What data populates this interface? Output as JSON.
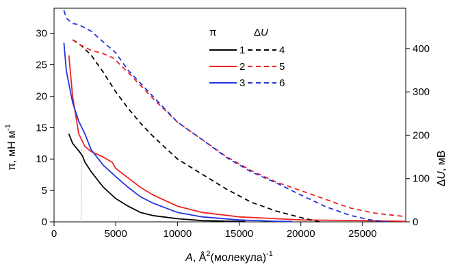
{
  "chart_data": {
    "type": "line",
    "xlabel_main": "A",
    "xlabel_rest": ", Å",
    "xlabel_sup": "2",
    "xlabel_tail": "(молекула)",
    "xlabel_sup2": "-1",
    "ylabel_left": "π, мН м",
    "ylabel_left_sup": "-1",
    "ylabel_right_prefix": "Δ",
    "ylabel_right_var": "U",
    "ylabel_right_rest": ", мВ",
    "x_ticks": [
      0,
      5000,
      10000,
      15000,
      20000,
      25000
    ],
    "y_left_ticks": [
      0,
      5,
      10,
      15,
      20,
      25,
      30
    ],
    "y_right_ticks": [
      0,
      100,
      200,
      300,
      400
    ],
    "xlim": [
      0,
      28500
    ],
    "ylim_left": [
      0,
      34
    ],
    "ylim_right": [
      0,
      493
    ],
    "legend": {
      "header_pi": "π",
      "header_du_prefix": "Δ",
      "header_du_var": "U",
      "rows": [
        {
          "pi_label": "1",
          "du_label": "4",
          "color": "#000000"
        },
        {
          "pi_label": "2",
          "du_label": "5",
          "color": "#ee2222"
        },
        {
          "pi_label": "3",
          "du_label": "6",
          "color": "#2233dd"
        }
      ]
    },
    "vline_x": 2200,
    "series": [
      {
        "name": "1",
        "axis": "left",
        "dashed": false,
        "color": "#000000",
        "points": [
          [
            1200,
            14
          ],
          [
            1500,
            12.5
          ],
          [
            2000,
            11.3
          ],
          [
            2300,
            10.5
          ],
          [
            2500,
            9.5
          ],
          [
            3000,
            8
          ],
          [
            4000,
            5.5
          ],
          [
            5000,
            3.7
          ],
          [
            6000,
            2.5
          ],
          [
            7000,
            1.5
          ],
          [
            8000,
            1.0
          ],
          [
            10000,
            0.5
          ],
          [
            12000,
            0.2
          ],
          [
            15500,
            0.05
          ]
        ]
      },
      {
        "name": "2",
        "axis": "left",
        "dashed": false,
        "color": "#ee2222",
        "points": [
          [
            1200,
            26.5
          ],
          [
            1500,
            20
          ],
          [
            2000,
            14
          ],
          [
            2500,
            12
          ],
          [
            3000,
            11.2
          ],
          [
            4000,
            10.3
          ],
          [
            4700,
            9.5
          ],
          [
            5000,
            8.5
          ],
          [
            6000,
            7
          ],
          [
            7000,
            5.5
          ],
          [
            8000,
            4.3
          ],
          [
            10000,
            2.5
          ],
          [
            12000,
            1.5
          ],
          [
            15000,
            0.8
          ],
          [
            20000,
            0.3
          ],
          [
            25000,
            0.2
          ],
          [
            28500,
            0.1
          ]
        ]
      },
      {
        "name": "3",
        "axis": "left",
        "dashed": false,
        "color": "#2233dd",
        "points": [
          [
            800,
            28.5
          ],
          [
            1000,
            24
          ],
          [
            1500,
            19
          ],
          [
            2000,
            16
          ],
          [
            2500,
            14
          ],
          [
            3000,
            11.5
          ],
          [
            4000,
            9
          ],
          [
            5000,
            7.2
          ],
          [
            6000,
            5.5
          ],
          [
            7000,
            4
          ],
          [
            8000,
            3
          ],
          [
            10000,
            1.5
          ],
          [
            12000,
            0.8
          ],
          [
            15000,
            0.3
          ],
          [
            18000,
            0.1
          ],
          [
            19300,
            0.05
          ]
        ]
      },
      {
        "name": "4",
        "axis": "right",
        "dashed": true,
        "color": "#000000",
        "points": [
          [
            1500,
            420
          ],
          [
            2000,
            412
          ],
          [
            3000,
            385
          ],
          [
            4000,
            345
          ],
          [
            5000,
            300
          ],
          [
            6000,
            262
          ],
          [
            7000,
            228
          ],
          [
            8000,
            198
          ],
          [
            10000,
            145
          ],
          [
            12000,
            110
          ],
          [
            14000,
            75
          ],
          [
            16000,
            45
          ],
          [
            18000,
            25
          ],
          [
            20000,
            10
          ],
          [
            21500,
            0
          ]
        ]
      },
      {
        "name": "5",
        "axis": "right",
        "dashed": true,
        "color": "#ee2222",
        "points": [
          [
            1500,
            420
          ],
          [
            2000,
            410
          ],
          [
            3000,
            396
          ],
          [
            4000,
            388
          ],
          [
            4800,
            378
          ],
          [
            6000,
            345
          ],
          [
            8000,
            285
          ],
          [
            10000,
            230
          ],
          [
            12000,
            190
          ],
          [
            14000,
            150
          ],
          [
            16000,
            118
          ],
          [
            18000,
            92
          ],
          [
            20000,
            72
          ],
          [
            22000,
            52
          ],
          [
            24000,
            32
          ],
          [
            26000,
            20
          ],
          [
            28500,
            12
          ]
        ]
      },
      {
        "name": "6",
        "axis": "right",
        "dashed": true,
        "color": "#2233dd",
        "points": [
          [
            800,
            488
          ],
          [
            1000,
            470
          ],
          [
            1500,
            458
          ],
          [
            2000,
            455
          ],
          [
            3000,
            440
          ],
          [
            4000,
            415
          ],
          [
            5000,
            390
          ],
          [
            6000,
            350
          ],
          [
            8000,
            290
          ],
          [
            10000,
            230
          ],
          [
            12000,
            190
          ],
          [
            14000,
            148
          ],
          [
            16000,
            115
          ],
          [
            18000,
            90
          ],
          [
            20000,
            62
          ],
          [
            22000,
            35
          ],
          [
            24000,
            15
          ],
          [
            25500,
            5
          ],
          [
            27000,
            0
          ]
        ]
      }
    ]
  }
}
